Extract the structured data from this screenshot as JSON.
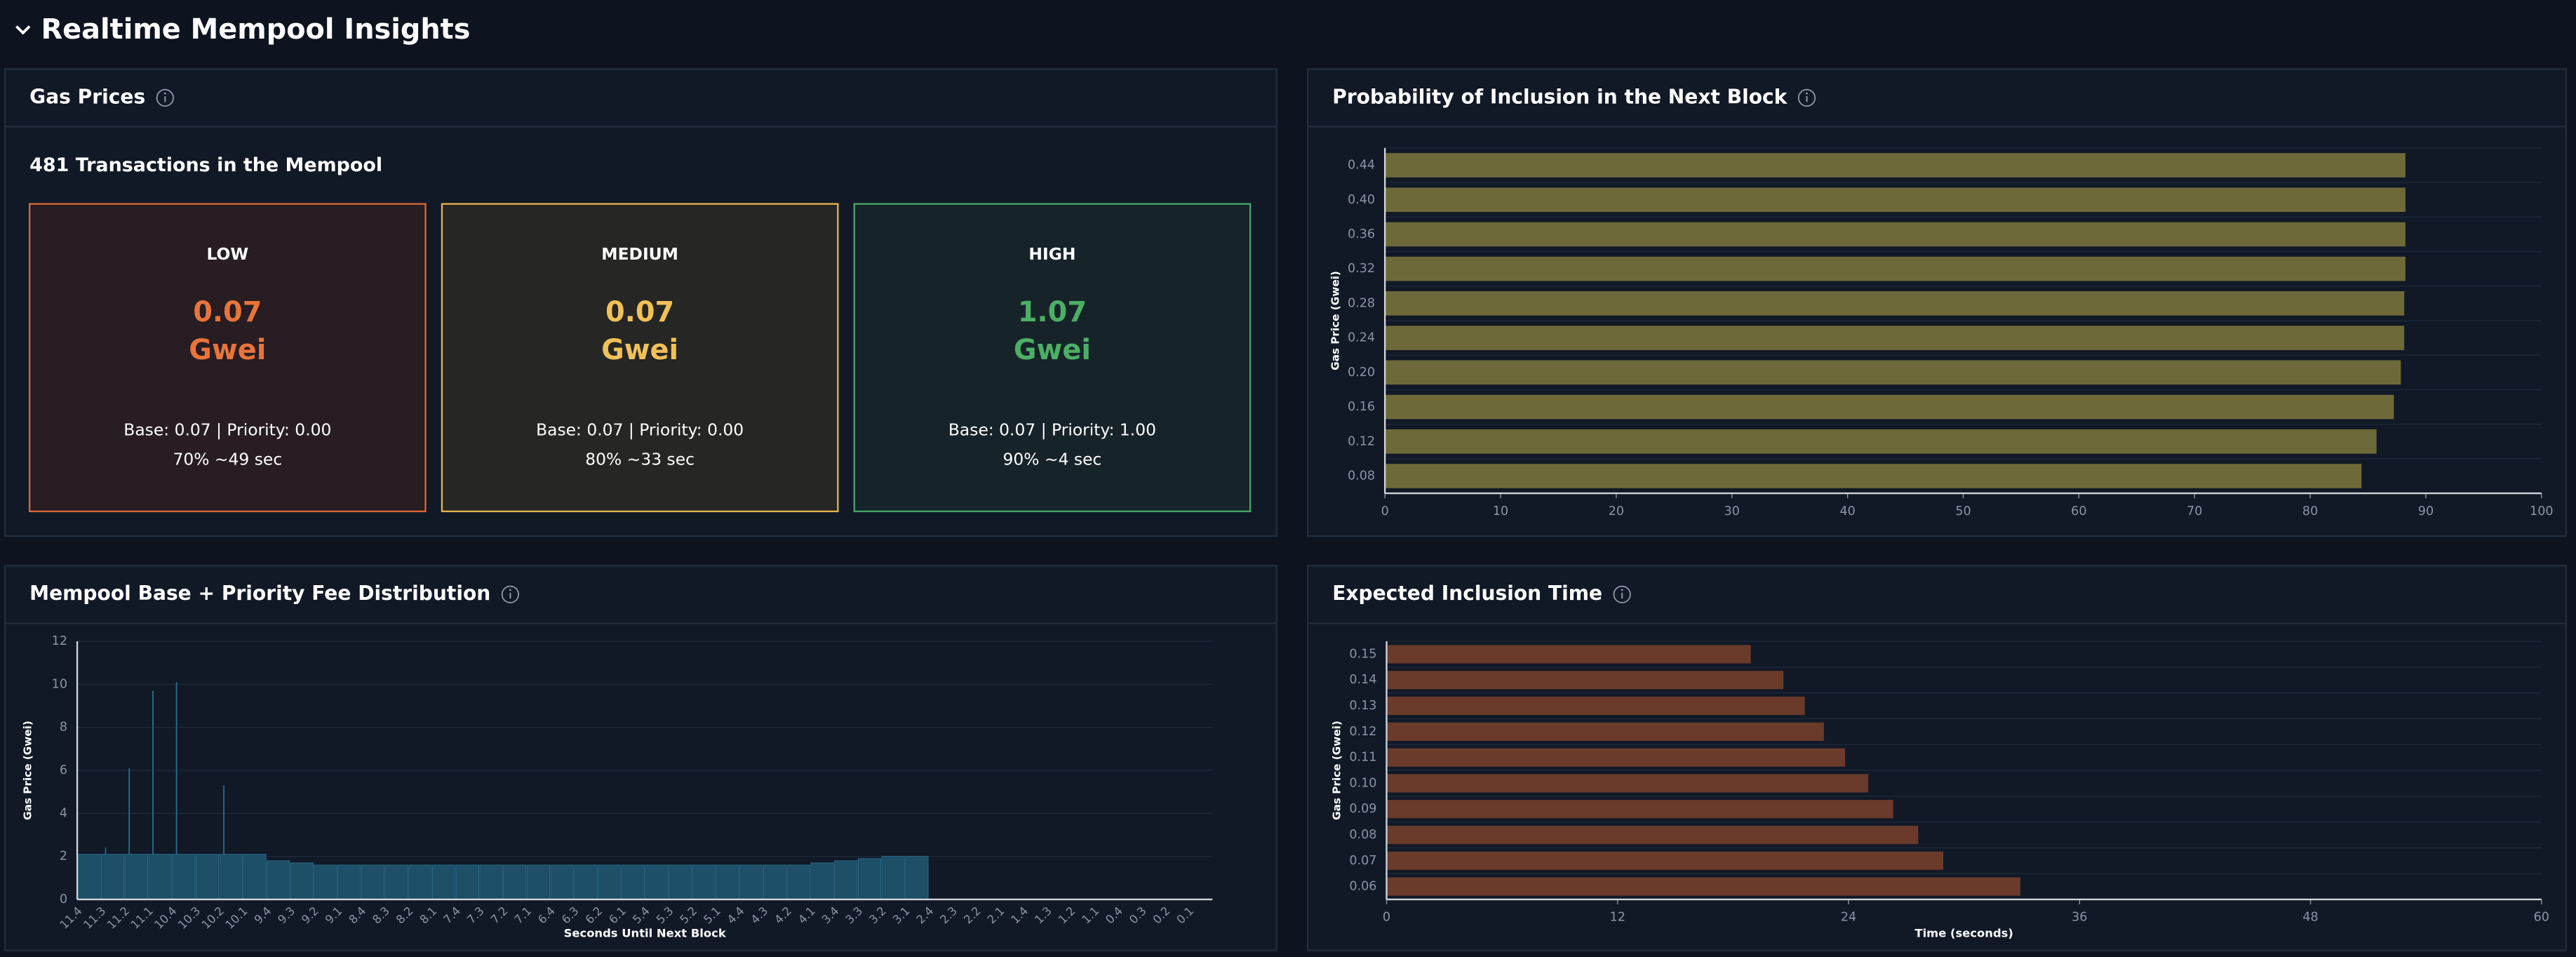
{
  "header": {
    "title": "Realtime Mempool Insights"
  },
  "gas_prices": {
    "title": "Gas Prices",
    "subtitle": "481 Transactions in the Mempool",
    "cards": [
      {
        "level": "LOW",
        "price": "0.07",
        "unit": "Gwei",
        "detail": "Base: 0.07 | Priority: 0.00",
        "estimate": "70% ~49 sec",
        "color": "#e8743b",
        "border": "#d9663a",
        "background": "#271d22"
      },
      {
        "level": "MEDIUM",
        "price": "0.07",
        "unit": "Gwei",
        "detail": "Base: 0.07 | Priority: 0.00",
        "estimate": "80% ~33 sec",
        "color": "#f0c157",
        "border": "#e3b24a",
        "background": "#262625"
      },
      {
        "level": "HIGH",
        "price": "1.07",
        "unit": "Gwei",
        "detail": "Base: 0.07 | Priority: 1.00",
        "estimate": "90% ~4 sec",
        "color": "#4caf65",
        "border": "#46a565",
        "background": "#16242a"
      }
    ]
  },
  "chart_data": [
    {
      "type": "bar",
      "orientation": "horizontal",
      "title": "Probability of Inclusion in the Next Block",
      "ylabel": "Gas Price (Gwei)",
      "categories": [
        "0.08",
        "0.12",
        "0.16",
        "0.20",
        "0.24",
        "0.28",
        "0.32",
        "0.36",
        "0.40",
        "0.44"
      ],
      "values": [
        84.4,
        85.7,
        87.2,
        87.8,
        88.1,
        88.1,
        88.2,
        88.2,
        88.2,
        88.2
      ],
      "color": "#6e6938",
      "xlim": [
        0,
        100
      ],
      "xticks": [
        0,
        10,
        20,
        30,
        40,
        50,
        60,
        70,
        80,
        90,
        100
      ],
      "grid": true
    },
    {
      "type": "bar",
      "orientation": "vertical",
      "title": "Mempool Base + Priority Fee Distribution",
      "xlabel": "Seconds Until Next Block",
      "ylabel": "Gas Price (Gwei)",
      "categories": [
        "11.4",
        "11.3",
        "11.2",
        "11.1",
        "10.4",
        "10.3",
        "10.2",
        "10.1",
        "9.4",
        "9.3",
        "9.2",
        "9.1",
        "8.4",
        "8.3",
        "8.2",
        "8.1",
        "7.4",
        "7.3",
        "7.2",
        "7.1",
        "6.4",
        "6.3",
        "6.2",
        "6.1",
        "5.4",
        "5.3",
        "5.2",
        "5.1",
        "4.4",
        "4.3",
        "4.2",
        "4.1",
        "3.4",
        "3.3",
        "3.2",
        "3.1",
        "2.4",
        "2.3",
        "2.2",
        "2.1",
        "1.4",
        "1.3",
        "1.2",
        "1.1",
        "0.4",
        "0.3",
        "0.2",
        "0.1"
      ],
      "values": [
        2.1,
        2.1,
        2.1,
        2.1,
        2.1,
        2.1,
        2.1,
        2.1,
        1.8,
        1.7,
        1.6,
        1.6,
        1.6,
        1.6,
        1.6,
        1.6,
        1.6,
        1.6,
        1.6,
        1.6,
        1.6,
        1.6,
        1.6,
        1.6,
        1.6,
        1.6,
        1.6,
        1.6,
        1.6,
        1.6,
        1.6,
        1.7,
        1.8,
        1.9,
        2.0,
        2.0,
        0,
        0,
        0,
        0,
        0,
        0,
        0,
        0,
        0,
        0,
        0,
        0
      ],
      "peaks": [
        null,
        2.4,
        6.1,
        9.7,
        10.1,
        null,
        5.3,
        null,
        null,
        null,
        null,
        null,
        null,
        null,
        null,
        null,
        null,
        null,
        null,
        null,
        null,
        null,
        null,
        null,
        null,
        null,
        null,
        null,
        null,
        null,
        null,
        null,
        null,
        null,
        null,
        null,
        null,
        null,
        null,
        null,
        null,
        null,
        null,
        null,
        null,
        null,
        null,
        null
      ],
      "color": "#1d4f66",
      "ylim": [
        0,
        12
      ],
      "yticks": [
        0,
        2,
        4,
        6,
        8,
        10,
        12
      ],
      "grid": true
    },
    {
      "type": "bar",
      "orientation": "horizontal",
      "title": "Expected Inclusion Time",
      "xlabel": "Time (seconds)",
      "ylabel": "Gas Price (Gwei)",
      "categories": [
        "0.06",
        "0.07",
        "0.08",
        "0.09",
        "0.10",
        "0.11",
        "0.12",
        "0.13",
        "0.14",
        "0.15"
      ],
      "values": [
        32.9,
        28.9,
        27.6,
        26.3,
        25.0,
        23.8,
        22.7,
        21.7,
        20.6,
        18.9
      ],
      "color": "#6a3a2a",
      "xlim": [
        0,
        60
      ],
      "xticks": [
        0,
        12,
        24,
        36,
        48,
        60
      ],
      "grid": true
    }
  ]
}
